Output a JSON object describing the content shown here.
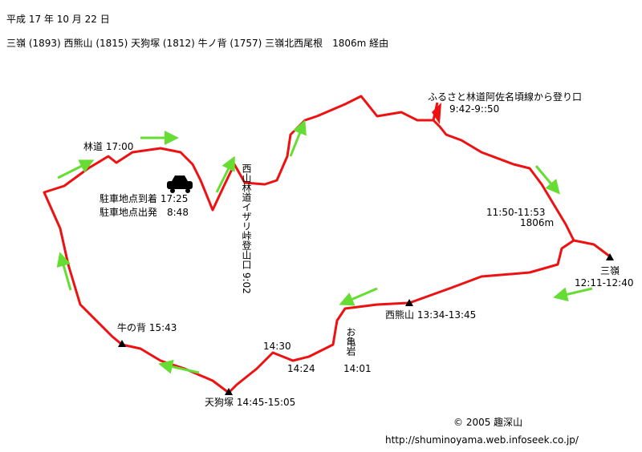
{
  "header": {
    "date": "平成 17 年 10 月 22 日",
    "route": "三嶺 (1893) 西熊山 (1815) 天狗塚 (1812) 牛ノ背 (1757) 三嶺北西尾根　1806m 経由"
  },
  "labels": {
    "start": "ふるさと林道阿佐名頃線から登り口",
    "start_time": "9:42-9::50",
    "rindo": "林道 17:00",
    "park_arrive": "駐車地点到着 17:25",
    "park_depart": "駐車地点出発　8:48",
    "trailhead": "西山林道イザリ峠登山口 9:02",
    "p1806_time": "11:50-11:53",
    "p1806": "1806m",
    "sanrei": "三嶺",
    "sanrei_time": "12:11-12:40",
    "nishikuma": "西熊山 13:34-13:45",
    "okame": "お亀岩",
    "okame_time": "14:01",
    "t1430": "14:30",
    "t1424": "14:24",
    "ushinose": "牛の背 15:43",
    "tengu": "天狗塚 14:45-15:05"
  },
  "footer": {
    "copyright": "© 2005 趣深山",
    "url": "http://shuminoyama.web.infoseek.co.jp/"
  }
}
